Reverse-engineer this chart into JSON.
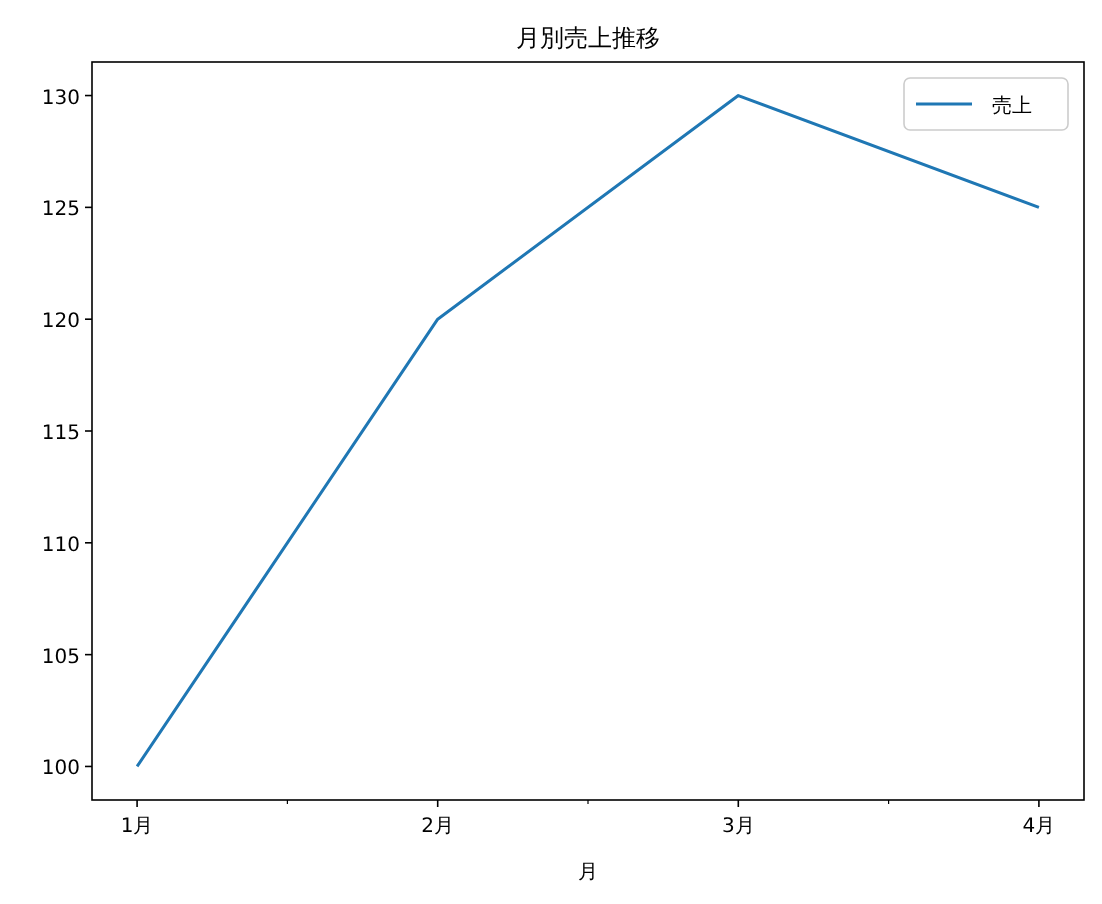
{
  "chart_data": {
    "type": "line",
    "title": "月別売上推移",
    "xlabel": "月",
    "categories": [
      "1月",
      "2月",
      "3月",
      "4月"
    ],
    "series": [
      {
        "name": "売上",
        "color": "#1f77b4",
        "values": [
          100,
          120,
          130,
          125
        ]
      }
    ],
    "ylim": [
      98.5,
      131.5
    ],
    "yticks": [
      100,
      105,
      110,
      115,
      120,
      125,
      130
    ],
    "legend": "top right",
    "grid": false
  }
}
